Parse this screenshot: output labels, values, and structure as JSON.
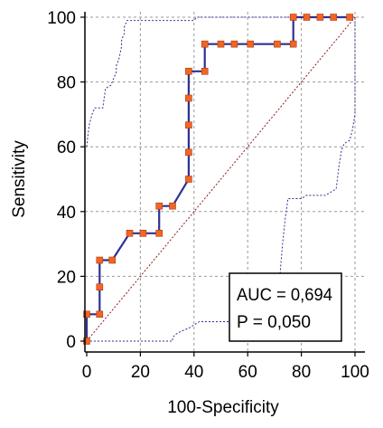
{
  "chart_data": {
    "type": "line",
    "title": "",
    "xlabel": "100-Specificity",
    "ylabel": "Sensitivity",
    "xlim": [
      0,
      100
    ],
    "ylim": [
      0,
      100
    ],
    "x_ticks": [
      "0",
      "20",
      "40",
      "60",
      "80",
      "100"
    ],
    "y_ticks": [
      "0",
      "20",
      "40",
      "60",
      "80",
      "100"
    ],
    "grid": true,
    "series": [
      {
        "role": "roc-curve",
        "color": "#2e3192",
        "marker_color": "#f26522",
        "points": [
          [
            0,
            0
          ],
          [
            0,
            8.3
          ],
          [
            4.8,
            8.3
          ],
          [
            4.8,
            16.7
          ],
          [
            4.8,
            25
          ],
          [
            9.5,
            25
          ],
          [
            16,
            33.3
          ],
          [
            21,
            33.3
          ],
          [
            27,
            33.3
          ],
          [
            27,
            41.7
          ],
          [
            32,
            41.7
          ],
          [
            38,
            50
          ],
          [
            38,
            58.3
          ],
          [
            38,
            66.7
          ],
          [
            38,
            75
          ],
          [
            38,
            83.3
          ],
          [
            44,
            83.3
          ],
          [
            44,
            91.7
          ],
          [
            50,
            91.7
          ],
          [
            55,
            91.7
          ],
          [
            61,
            91.7
          ],
          [
            71,
            91.7
          ],
          [
            77,
            91.7
          ],
          [
            77,
            100
          ],
          [
            82,
            100
          ],
          [
            87,
            100
          ],
          [
            92,
            100
          ],
          [
            98,
            100
          ]
        ]
      },
      {
        "role": "confidence-upper",
        "color": "#2e3192",
        "points": [
          [
            0,
            60
          ],
          [
            0.5,
            64
          ],
          [
            1,
            67
          ],
          [
            2,
            70
          ],
          [
            3,
            72
          ],
          [
            6,
            72
          ],
          [
            7,
            78
          ],
          [
            9,
            79
          ],
          [
            11,
            83
          ],
          [
            11,
            85
          ],
          [
            12,
            87
          ],
          [
            13,
            91
          ],
          [
            13,
            93
          ],
          [
            14,
            95
          ],
          [
            14,
            97
          ],
          [
            15,
            99
          ],
          [
            20,
            99
          ],
          [
            23,
            99
          ],
          [
            27,
            99
          ],
          [
            30,
            99
          ],
          [
            33,
            99
          ],
          [
            35,
            99
          ],
          [
            40,
            99
          ],
          [
            41,
            100
          ],
          [
            100,
            100
          ]
        ]
      },
      {
        "role": "confidence-lower",
        "color": "#2e3192",
        "points": [
          [
            0,
            0
          ],
          [
            32,
            0
          ],
          [
            32,
            1
          ],
          [
            33,
            2
          ],
          [
            35,
            3
          ],
          [
            38,
            4
          ],
          [
            40,
            5
          ],
          [
            42,
            6
          ],
          [
            47,
            6
          ],
          [
            63,
            6
          ],
          [
            67,
            6
          ],
          [
            67,
            7
          ],
          [
            68,
            8
          ],
          [
            69,
            10
          ],
          [
            70,
            12
          ],
          [
            71,
            15
          ],
          [
            72,
            20
          ],
          [
            73,
            30
          ],
          [
            74,
            38
          ],
          [
            75,
            44
          ],
          [
            80,
            44
          ],
          [
            82,
            45
          ],
          [
            89,
            45
          ],
          [
            93,
            47
          ],
          [
            94,
            54
          ],
          [
            95,
            59
          ],
          [
            96,
            61
          ],
          [
            98,
            62
          ],
          [
            99,
            65
          ],
          [
            100,
            70
          ],
          [
            100,
            100
          ]
        ]
      },
      {
        "role": "diagonal-reference",
        "color": "#8b1a1a",
        "points": [
          [
            0,
            0
          ],
          [
            100,
            100
          ]
        ]
      }
    ],
    "annotations": {
      "auc_text": "AUC = 0,694",
      "p_text": "P = 0,050"
    }
  }
}
